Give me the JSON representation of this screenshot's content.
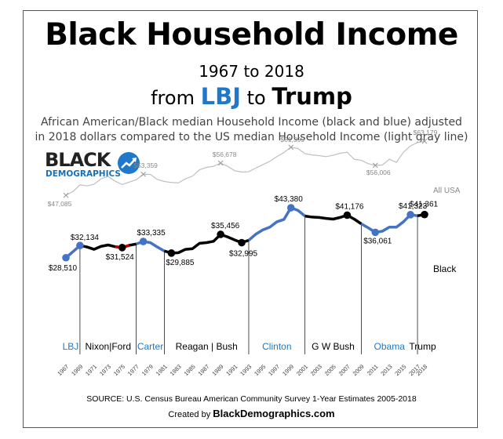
{
  "header": {
    "title": "Black Household Income",
    "years": "1967 to 2018",
    "from_prefix": "from",
    "from_lbj": "LBJ",
    "from_to": "to",
    "from_trump": "Trump",
    "description_line1": "African American/Black median Household Income (black and blue) adjusted",
    "description_line2": "in 2018 dollars compared to the US median Household Income (light gray line)"
  },
  "logo": {
    "line1": "BLACK",
    "line2": "DEMOGRAPHICS",
    "icon": "trend-arrow-icon"
  },
  "footer": {
    "source": "SOURCE: U.S. Census Bureau American Community  Survey 1-Year Estimates 2005-2018",
    "created_prefix": "Created by",
    "created_brand": "BlackDemographics",
    "created_suffix": ".com"
  },
  "colors": {
    "black_series": "#000000",
    "blue_segments": "#4472c4",
    "usa_series": "#bfbfbf",
    "red_segment": "#c00000",
    "lbj_label": "#1f78c8"
  },
  "chart_data": {
    "type": "line",
    "x": [
      1967,
      1968,
      1969,
      1970,
      1971,
      1972,
      1973,
      1974,
      1975,
      1976,
      1977,
      1978,
      1979,
      1980,
      1981,
      1982,
      1983,
      1984,
      1985,
      1986,
      1987,
      1988,
      1989,
      1990,
      1991,
      1992,
      1993,
      1994,
      1995,
      1996,
      1997,
      1998,
      1999,
      2000,
      2001,
      2002,
      2003,
      2004,
      2005,
      2006,
      2007,
      2008,
      2009,
      2010,
      2011,
      2012,
      2013,
      2014,
      2015,
      2016,
      2017,
      2018
    ],
    "x_tick_labels": [
      "1967",
      "1969",
      "1971",
      "1973",
      "1975",
      "1977",
      "1979",
      "1981",
      "1983",
      "1985",
      "1987",
      "1989",
      "1991",
      "1993",
      "1995",
      "1997",
      "1999",
      "2001",
      "2003",
      "2005",
      "2007",
      "2009",
      "2011",
      "2013",
      "2015",
      "2017",
      "2018"
    ],
    "series": [
      {
        "name": "Black",
        "values": [
          28510,
          30300,
          32134,
          31700,
          31000,
          31900,
          32300,
          31800,
          31524,
          32200,
          32600,
          33335,
          33000,
          31700,
          30500,
          29885,
          30000,
          31000,
          31200,
          32800,
          33000,
          33400,
          35456,
          34700,
          33800,
          32995,
          33700,
          35500,
          36800,
          37600,
          39200,
          39900,
          43380,
          42600,
          40900,
          40600,
          40500,
          40200,
          40000,
          40500,
          41176,
          40000,
          38600,
          37400,
          36061,
          36400,
          37600,
          37600,
          39200,
          41323,
          41000,
          41361
        ]
      },
      {
        "name": "All USA",
        "values": [
          47085,
          48200,
          50200,
          49900,
          50400,
          52000,
          52700,
          51300,
          50300,
          51000,
          51700,
          53359,
          53300,
          51800,
          51200,
          50900,
          50800,
          52000,
          52800,
          54700,
          55400,
          55700,
          56678,
          55700,
          54400,
          54000,
          54100,
          55200,
          56200,
          57200,
          58600,
          59800,
          61399,
          61000,
          59500,
          59100,
          58900,
          58600,
          59000,
          59600,
          59900,
          57800,
          57500,
          56500,
          56006,
          56100,
          57800,
          56900,
          59900,
          61800,
          62800,
          63179
        ]
      }
    ],
    "point_labels": [
      {
        "year": 1967,
        "text": "$28,510",
        "series": "Black"
      },
      {
        "year": 1969,
        "text": "$32,134",
        "series": "Black"
      },
      {
        "year": 1975,
        "text": "$31,524",
        "series": "Black"
      },
      {
        "year": 1978,
        "text": "$33,335",
        "series": "Black"
      },
      {
        "year": 1982,
        "text": "$29,885",
        "series": "Black"
      },
      {
        "year": 1989,
        "text": "$35,456",
        "series": "Black"
      },
      {
        "year": 1992,
        "text": "$32,995",
        "series": "Black"
      },
      {
        "year": 1999,
        "text": "$43,380",
        "series": "Black"
      },
      {
        "year": 2007,
        "text": "$41,176",
        "series": "Black"
      },
      {
        "year": 2011,
        "text": "$36,061",
        "series": "Black"
      },
      {
        "year": 2016,
        "text": "$41,323",
        "series": "Black"
      },
      {
        "year": 2018,
        "text": "$41,361",
        "series": "Black"
      },
      {
        "year": 1967,
        "text": "$47,085",
        "series": "All USA"
      },
      {
        "year": 1978,
        "text": "$53,359",
        "series": "All USA"
      },
      {
        "year": 1989,
        "text": "$56,678",
        "series": "All USA"
      },
      {
        "year": 1999,
        "text": "$61,399",
        "series": "All USA"
      },
      {
        "year": 2011,
        "text": "$56,006",
        "series": "All USA"
      },
      {
        "year": 2018,
        "text": "$63,179",
        "series": "All USA"
      }
    ],
    "series_labels": {
      "black": "Black",
      "usa": "All USA"
    },
    "eras": [
      {
        "name": "LBJ",
        "start": 1967,
        "end": 1969,
        "party": "D"
      },
      {
        "name": "Nixon|Ford",
        "start": 1969,
        "end": 1977,
        "party": "R"
      },
      {
        "name": "Carter",
        "start": 1977,
        "end": 1981,
        "party": "D"
      },
      {
        "name": "Reagan | Bush",
        "start": 1981,
        "end": 1993,
        "party": "R"
      },
      {
        "name": "Clinton",
        "start": 1993,
        "end": 2001,
        "party": "D"
      },
      {
        "name": "G W Bush",
        "start": 2001,
        "end": 2009,
        "party": "R"
      },
      {
        "name": "Obama",
        "start": 2009,
        "end": 2017,
        "party": "D"
      },
      {
        "name": "Trump",
        "start": 2017,
        "end": 2018,
        "party": "R"
      }
    ],
    "grid": false
  }
}
